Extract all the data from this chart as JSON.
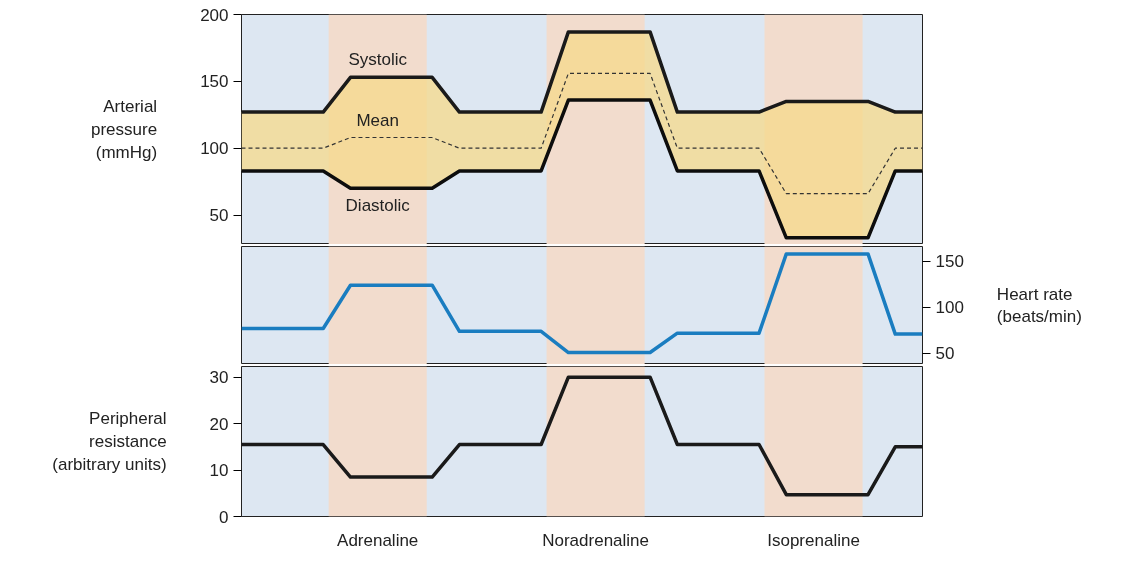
{
  "chart_data": [
    {
      "type": "line",
      "ylabel": "Arterial\npressure\n(mmHg)",
      "ylim": [
        28,
        200
      ],
      "yticks": [
        50,
        100,
        150,
        200
      ],
      "tick_labels": "y",
      "grid": false,
      "categories": [
        null,
        null,
        null,
        null,
        null,
        "Adrenaline",
        null,
        null,
        null,
        null,
        null,
        null,
        null,
        "Noradrenaline",
        null,
        null,
        null,
        null,
        null,
        null,
        null,
        "Isoprenaline",
        null,
        null,
        null,
        null
      ],
      "series": [
        {
          "name": "Systolic",
          "color": "#1a1a1a",
          "values": [
            127,
            127,
            127,
            127,
            153,
            153,
            153,
            153,
            127,
            127,
            127,
            127,
            187,
            187,
            187,
            187,
            127,
            127,
            127,
            127,
            135,
            135,
            135,
            135,
            127,
            127
          ]
        },
        {
          "name": "Mean",
          "color": "#333333",
          "line_style": "dashed",
          "values": [
            100,
            100,
            100,
            100,
            108,
            108,
            108,
            108,
            100,
            100,
            100,
            100,
            156,
            156,
            156,
            156,
            100,
            100,
            100,
            100,
            66,
            66,
            66,
            66,
            100,
            100
          ],
          "lower": [
            83,
            83,
            83,
            83,
            70,
            70,
            70,
            70,
            83,
            83,
            83,
            83,
            136,
            136,
            136,
            136,
            83,
            83,
            83,
            83,
            33,
            33,
            33,
            33,
            83,
            83
          ],
          "upper": [
            127,
            127,
            127,
            127,
            153,
            153,
            153,
            153,
            127,
            127,
            127,
            127,
            187,
            187,
            187,
            187,
            127,
            127,
            127,
            127,
            135,
            135,
            135,
            135,
            127,
            127
          ]
        },
        {
          "name": "Diastolic",
          "color": "#0d0d0d",
          "values": [
            83,
            83,
            83,
            83,
            70,
            70,
            70,
            70,
            83,
            83,
            83,
            83,
            136,
            136,
            136,
            136,
            83,
            83,
            83,
            83,
            33,
            33,
            33,
            33,
            83,
            83
          ]
        }
      ]
    },
    {
      "type": "line",
      "ylabel": "Heart rate\n(beats/min)",
      "ylim": [
        38,
        166
      ],
      "yticks": [
        50,
        100,
        150
      ],
      "tick_labels": "y",
      "grid": false,
      "categories": [
        null,
        null,
        null,
        null,
        null,
        "Adrenaline",
        null,
        null,
        null,
        null,
        null,
        null,
        null,
        "Noradrenaline",
        null,
        null,
        null,
        null,
        null,
        null,
        null,
        "Isoprenaline",
        null,
        null,
        null,
        null
      ],
      "series": [
        {
          "color": "#1a7dc0",
          "values": [
            77,
            77,
            77,
            77,
            124,
            124,
            124,
            124,
            74,
            74,
            74,
            74,
            51,
            51,
            51,
            51,
            72,
            72,
            72,
            72,
            158,
            158,
            158,
            158,
            71,
            71
          ]
        }
      ]
    },
    {
      "type": "line",
      "ylabel": "Peripheral\nresistance\n(arbitrary units)",
      "ylim": [
        0,
        32.3
      ],
      "yticks": [
        0,
        10,
        20,
        30
      ],
      "grid": false,
      "categories": [
        null,
        null,
        null,
        null,
        null,
        "Adrenaline",
        null,
        null,
        null,
        null,
        null,
        null,
        null,
        "Noradrenaline",
        null,
        null,
        null,
        null,
        null,
        null,
        null,
        "Isoprenaline",
        null,
        null,
        null,
        null
      ],
      "series": [
        {
          "color": "#1a1a1a",
          "values": [
            15.5,
            15.5,
            15.5,
            15.5,
            8.5,
            8.5,
            8.5,
            8.5,
            15.5,
            15.5,
            15.5,
            15.5,
            30,
            30,
            30,
            30,
            15.5,
            15.5,
            15.5,
            15.5,
            4.7,
            4.7,
            4.7,
            4.7,
            15,
            15
          ]
        }
      ]
    }
  ]
}
